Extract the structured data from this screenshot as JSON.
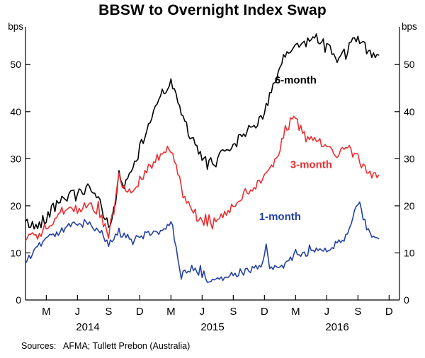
{
  "title": "BBSW to Overnight Index Swap",
  "source": "Sources:   AFMA; Tullett Prebon (Australia)",
  "chart_data": {
    "type": "line",
    "title": "BBSW to Overnight Index Swap",
    "y_unit": "bps",
    "ylabel": "bps",
    "xlabel": "",
    "ylim": [
      0,
      58
    ],
    "yticks": [
      0,
      10,
      20,
      30,
      40,
      50
    ],
    "grid": false,
    "legend_position": "inline-labels",
    "x_start": "2014-01",
    "x_frequency": "monthly",
    "x_domain_months": 36,
    "x_ticks": [
      {
        "label": "M",
        "month": 2
      },
      {
        "label": "J",
        "month": 5
      },
      {
        "label": "S",
        "month": 8
      },
      {
        "label": "D",
        "month": 11
      },
      {
        "label": "M",
        "month": 14
      },
      {
        "label": "J",
        "month": 17
      },
      {
        "label": "S",
        "month": 20
      },
      {
        "label": "D",
        "month": 23
      },
      {
        "label": "M",
        "month": 26
      },
      {
        "label": "J",
        "month": 29
      },
      {
        "label": "S",
        "month": 32
      },
      {
        "label": "D",
        "month": 35
      }
    ],
    "year_labels": [
      {
        "label": "2014",
        "month": 6
      },
      {
        "label": "2015",
        "month": 18
      },
      {
        "label": "2016",
        "month": 30
      }
    ],
    "series": [
      {
        "name": "6-month",
        "color": "#000000",
        "label": {
          "text": "6-month",
          "month": 26,
          "bps": 46
        },
        "monthly_values": [
          16.5,
          15.5,
          17.5,
          21,
          22,
          22.5,
          23.5,
          21.5,
          15.5,
          23,
          26,
          32,
          38,
          44,
          46,
          40,
          34,
          30,
          29,
          31.5,
          33,
          35,
          37,
          40,
          46,
          52,
          54,
          54.5,
          56,
          54,
          51,
          53,
          56,
          52.5,
          52
        ],
        "spikes": [
          {
            "month": 9.0,
            "bps": 27.5
          }
        ]
      },
      {
        "name": "3-month",
        "color": "#ee2e31",
        "label": {
          "text": "3-month",
          "month": 27.5,
          "bps": 28
        },
        "monthly_values": [
          13,
          13.5,
          15.5,
          18,
          19.5,
          19,
          20,
          19,
          14,
          24,
          23,
          25.5,
          28.5,
          31,
          32,
          24,
          19,
          17,
          16,
          18.5,
          20,
          22,
          24,
          26.5,
          29,
          36,
          39.5,
          34,
          34.5,
          32,
          31,
          32.5,
          30,
          27,
          26.5
        ],
        "spikes": [
          {
            "month": 9.0,
            "bps": 27
          }
        ]
      },
      {
        "name": "1-month",
        "color": "#2341a5",
        "label": {
          "text": "1-month",
          "month": 24.5,
          "bps": 17
        },
        "monthly_values": [
          8,
          11,
          13,
          14.5,
          15.5,
          16,
          16.5,
          15,
          12,
          14.5,
          13,
          13.5,
          14,
          14.5,
          17,
          5,
          7,
          5,
          4,
          5,
          5.5,
          6,
          6.5,
          7.5,
          7,
          7.5,
          9.5,
          10,
          11,
          11,
          12,
          13.5,
          21,
          14.5,
          13
        ],
        "spikes": [
          {
            "month": 23.2,
            "bps": 12.5
          }
        ]
      }
    ]
  }
}
